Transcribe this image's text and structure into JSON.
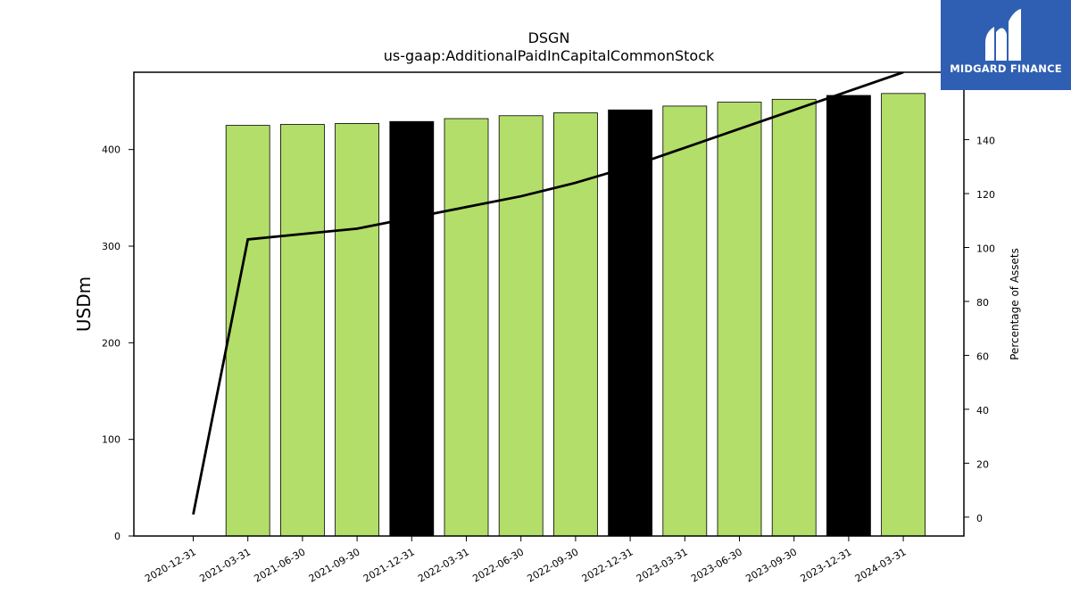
{
  "chart_data": {
    "type": "bar",
    "title": "DSGN",
    "subtitle": "us-gaap:AdditionalPaidInCapitalCommonStock",
    "ylabel": "USDm",
    "y2label": "Percentage of Assets",
    "ylim": [
      0,
      480
    ],
    "y2lim": [
      -7,
      165
    ],
    "yticks": [
      0,
      100,
      200,
      300,
      400
    ],
    "y2ticks": [
      0,
      20,
      40,
      60,
      80,
      100,
      120,
      140
    ],
    "categories": [
      "2020-12-31",
      "2021-03-31",
      "2021-06-30",
      "2021-09-30",
      "2021-12-31",
      "2022-03-31",
      "2022-06-30",
      "2022-09-30",
      "2022-12-31",
      "2023-03-31",
      "2023-06-30",
      "2023-09-30",
      "2023-12-31",
      "2024-03-31"
    ],
    "series": [
      {
        "type": "bar",
        "values": [
          null,
          425,
          426,
          427,
          429,
          432,
          435,
          438,
          441,
          445,
          449,
          452,
          456,
          458
        ],
        "colors": [
          "#b3de69",
          "#b3de69",
          "#b3de69",
          "#b3de69",
          "#000000",
          "#b3de69",
          "#b3de69",
          "#b3de69",
          "#000000",
          "#b3de69",
          "#b3de69",
          "#b3de69",
          "#000000",
          "#b3de69"
        ]
      },
      {
        "type": "line",
        "axis": "right",
        "color": "#000000",
        "values": [
          1,
          103,
          105,
          107,
          111,
          115,
          119,
          124,
          130,
          137,
          144,
          151,
          158,
          165
        ]
      }
    ],
    "legend": "none",
    "grid": false
  },
  "logo": {
    "text": "MIDGARD FINANCE",
    "background": "#2f5fb3"
  }
}
